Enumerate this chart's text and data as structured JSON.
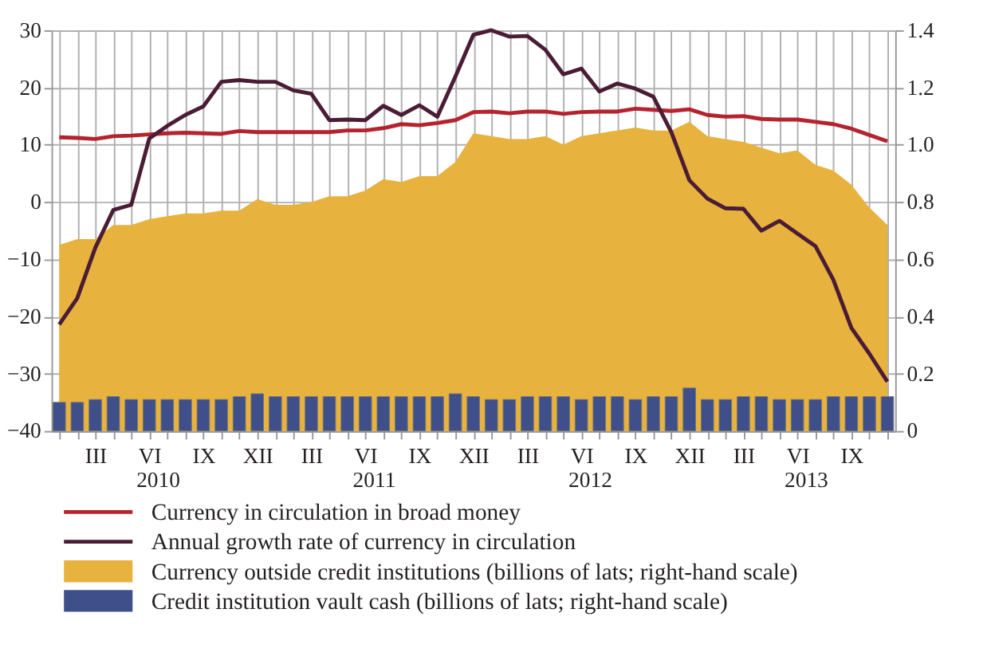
{
  "chart_data": {
    "type": "line",
    "categories": [
      null,
      null,
      "III",
      null,
      null,
      "VI",
      null,
      null,
      "IX",
      null,
      null,
      "XII",
      null,
      null,
      "III",
      null,
      null,
      "VI",
      null,
      null,
      "IX",
      null,
      null,
      "XII",
      null,
      null,
      "III",
      null,
      null,
      "VI",
      null,
      null,
      "IX",
      null,
      null,
      "XII",
      null,
      null,
      "III",
      null,
      null,
      "VI",
      null,
      null,
      "IX",
      null,
      null
    ],
    "series": [
      {
        "name": "Currency in circulation in broad money",
        "color": "#b5232f",
        "values": [
          11.3,
          11.2,
          11.0,
          11.5,
          11.6,
          11.8,
          12.0,
          12.1,
          12.0,
          11.9,
          12.4,
          12.2,
          12.2,
          12.2,
          12.2,
          12.2,
          12.5,
          12.5,
          12.9,
          13.6,
          13.4,
          13.8,
          14.3,
          15.7,
          15.8,
          15.5,
          15.8,
          15.8,
          15.4,
          15.7,
          15.8,
          15.8,
          16.3,
          16.1,
          15.9,
          16.2,
          15.2,
          14.9,
          15.0,
          14.5,
          14.4,
          14.4,
          14.0,
          13.6,
          12.8,
          11.7,
          10.6
        ]
      },
      {
        "name": "Annual growth rate of currency in circulation",
        "color": "#4a1c35",
        "values": [
          -21.4,
          -16.8,
          -8.0,
          -1.4,
          -0.5,
          11.1,
          13.3,
          15.2,
          16.7,
          21.0,
          21.3,
          21.0,
          21.0,
          19.5,
          18.9,
          14.3,
          14.4,
          14.3,
          16.8,
          15.2,
          16.9,
          14.9,
          21.9,
          29.2,
          30.0,
          28.9,
          29.0,
          26.6,
          22.3,
          23.3,
          19.3,
          20.7,
          19.8,
          18.4,
          12.2,
          3.8,
          0.6,
          -1.1,
          -1.2,
          -5.0,
          -3.3,
          -5.5,
          -7.7,
          -13.6,
          -22.0,
          -26.5,
          -31.4
        ]
      },
      {
        "name": "Currency outside credit institutions (billions of lats; right-hand scale)",
        "type": "area",
        "axis": "y2",
        "color": "#e8b23e",
        "values": [
          0.65,
          0.67,
          0.67,
          0.72,
          0.72,
          0.74,
          0.75,
          0.76,
          0.76,
          0.77,
          0.77,
          0.81,
          0.79,
          0.79,
          0.8,
          0.82,
          0.82,
          0.84,
          0.88,
          0.87,
          0.89,
          0.89,
          0.94,
          1.04,
          1.03,
          1.02,
          1.02,
          1.03,
          1.0,
          1.03,
          1.04,
          1.05,
          1.06,
          1.05,
          1.05,
          1.08,
          1.03,
          1.02,
          1.01,
          0.99,
          0.97,
          0.98,
          0.93,
          0.91,
          0.86,
          0.78,
          0.72
        ]
      },
      {
        "name": "Credit institution vault cash (billions of lats; right-hand scale)",
        "type": "bar",
        "axis": "y2",
        "color": "#3f4f8a",
        "values": [
          0.1,
          0.1,
          0.11,
          0.12,
          0.11,
          0.11,
          0.11,
          0.11,
          0.11,
          0.11,
          0.12,
          0.13,
          0.12,
          0.12,
          0.12,
          0.12,
          0.12,
          0.12,
          0.12,
          0.12,
          0.12,
          0.12,
          0.13,
          0.12,
          0.11,
          0.11,
          0.12,
          0.12,
          0.12,
          0.11,
          0.12,
          0.12,
          0.11,
          0.12,
          0.12,
          0.15,
          0.11,
          0.11,
          0.12,
          0.12,
          0.11,
          0.11,
          0.11,
          0.12,
          0.12,
          0.12,
          0.12
        ]
      }
    ],
    "annotations": [
      "2010",
      "2011",
      "2012",
      "2013"
    ],
    "ylim": [
      -40,
      30
    ],
    "yticks": [
      -40,
      -30,
      -20,
      -10,
      0,
      10,
      20,
      30
    ],
    "y2lim": [
      0,
      1.4
    ],
    "y2ticks": [
      0,
      0.2,
      0.4,
      0.6,
      0.8,
      {
        "value": 1,
        "label": "1.0"
      },
      1.2,
      1.4
    ],
    "grid": true,
    "legend": "bottom"
  }
}
